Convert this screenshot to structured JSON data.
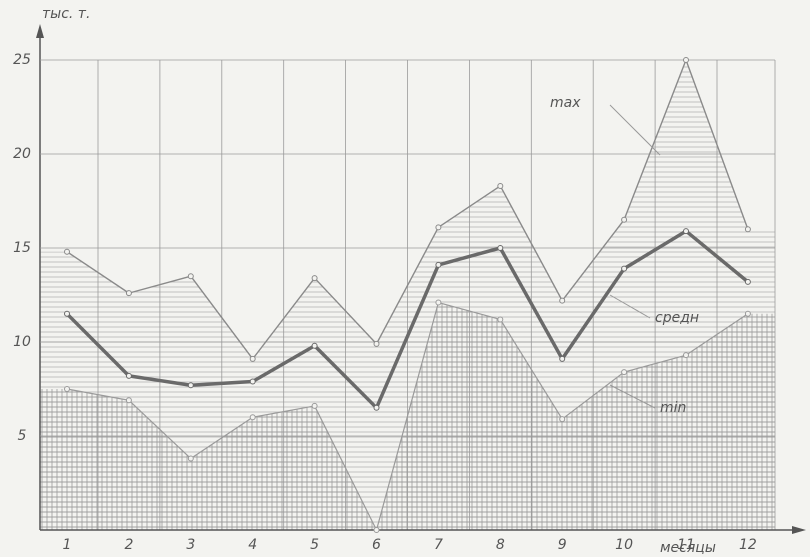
{
  "chart_data": {
    "type": "line",
    "y_label": "тыс. т.",
    "x_label": "месяцы",
    "categories": [
      "1",
      "2",
      "3",
      "4",
      "5",
      "6",
      "7",
      "8",
      "9",
      "10",
      "11",
      "12"
    ],
    "series": [
      {
        "name": "max",
        "color": "#8a8a8a",
        "values": [
          14.8,
          12.6,
          13.5,
          9.1,
          13.4,
          9.9,
          16.1,
          18.3,
          12.2,
          16.5,
          25,
          16.0
        ]
      },
      {
        "name": "средн",
        "color": "#6a6a6a",
        "values": [
          11.5,
          8.2,
          7.7,
          7.9,
          9.8,
          6.5,
          14.1,
          15.0,
          9.1,
          13.9,
          15.9,
          13.2
        ]
      },
      {
        "name": "min",
        "color": "#9a9a9a",
        "values": [
          7.5,
          6.9,
          3.8,
          6.0,
          6.6,
          0,
          12.1,
          11.2,
          5.9,
          8.4,
          9.3,
          11.5
        ]
      }
    ],
    "ylim": [
      0,
      25
    ],
    "yticks": [
      5,
      10,
      15,
      20,
      25
    ],
    "grid": true
  }
}
